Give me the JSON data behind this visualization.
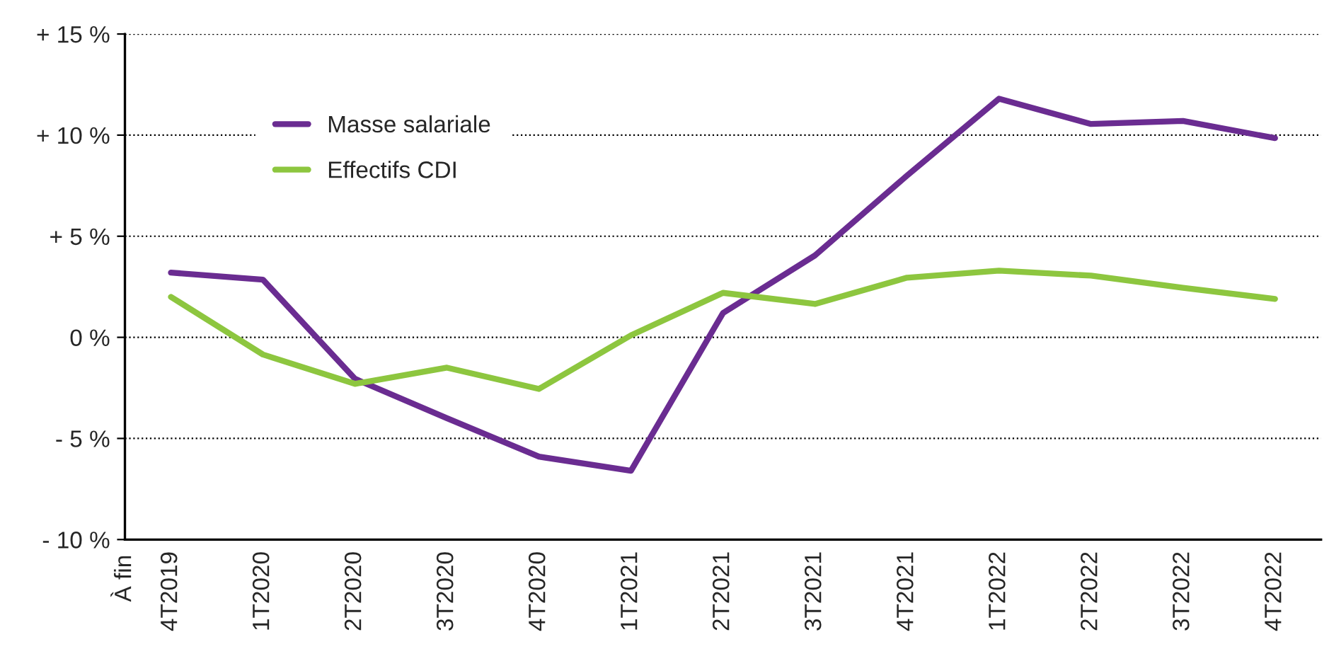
{
  "chart_data": {
    "type": "line",
    "annotations": [
      "À fin"
    ],
    "categories": [
      "4T2019",
      "1T2020",
      "2T2020",
      "3T2020",
      "4T2020",
      "1T2021",
      "2T2021",
      "3T2021",
      "4T2021",
      "1T2022",
      "2T2022",
      "3T2022",
      "4T2022"
    ],
    "series": [
      {
        "name": "Masse salariale",
        "color": "#6a2c91",
        "values": [
          3.2,
          2.85,
          -2.05,
          -4.0,
          -5.9,
          -6.6,
          1.2,
          4.05,
          8.0,
          11.8,
          10.55,
          10.7,
          9.85
        ]
      },
      {
        "name": "Effectifs CDI",
        "color": "#8dc63f",
        "values": [
          2.0,
          -0.85,
          -2.3,
          -1.5,
          -2.55,
          0.1,
          2.2,
          1.65,
          2.95,
          3.3,
          3.05,
          2.45,
          1.9
        ]
      }
    ],
    "ylim": [
      -10,
      15
    ],
    "yticks": [
      {
        "value": -10,
        "label": "- 10 %"
      },
      {
        "value": -5,
        "label": "- 5 %"
      },
      {
        "value": 0,
        "label": "0 %"
      },
      {
        "value": 5,
        "label": "+ 5 %"
      },
      {
        "value": 10,
        "label": "+ 10 %"
      },
      {
        "value": 15,
        "label": "+ 15 %"
      }
    ],
    "grid": "y",
    "legend": "top left",
    "marker": "none",
    "line_style": "solid"
  }
}
